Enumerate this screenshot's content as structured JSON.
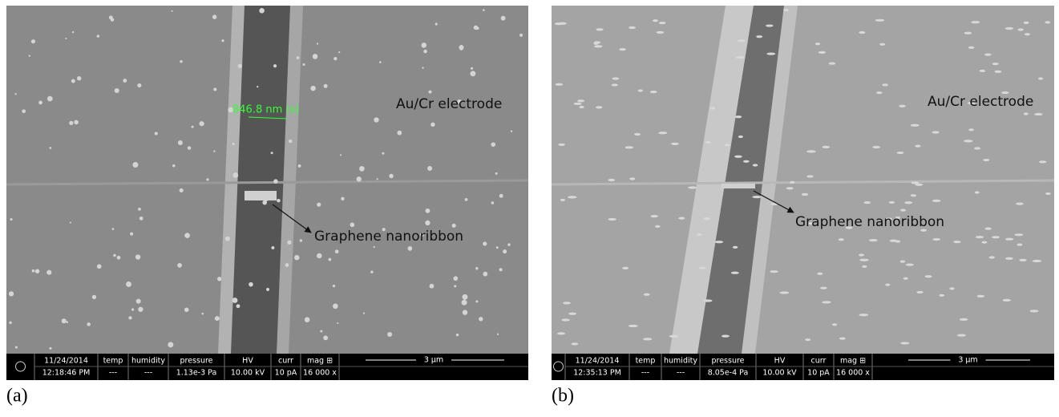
{
  "panels": [
    {
      "label": "(a)",
      "electrode": "Au/Cr electrode",
      "ribbon": "Graphene nanoribbon",
      "measurement": "846.8 nm (s)",
      "date": "11/24/2014",
      "time": "12:18:46 PM",
      "scale": "3 µm",
      "fields": [
        {
          "header": "temp",
          "value": "---"
        },
        {
          "header": "humidity",
          "value": "---"
        },
        {
          "header": "pressure",
          "value": "1.13e-3 Pa"
        },
        {
          "header": "HV",
          "value": "10.00 kV"
        },
        {
          "header": "curr",
          "value": "10 pA"
        },
        {
          "header": "mag ⊞",
          "value": "16 000 x"
        }
      ]
    },
    {
      "label": "(b)",
      "electrode": "Au/Cr electrode",
      "ribbon": "Graphene nanoribbon",
      "date": "11/24/2014",
      "time": "12:35:13 PM",
      "scale": "3 µm",
      "fields": [
        {
          "header": "temp",
          "value": "---"
        },
        {
          "header": "humidity",
          "value": "---"
        },
        {
          "header": "pressure",
          "value": "8.05e-4 Pa"
        },
        {
          "header": "HV",
          "value": "10.00 kV"
        },
        {
          "header": "curr",
          "value": "10 pA"
        },
        {
          "header": "mag ⊞",
          "value": "16 000 x"
        }
      ]
    }
  ]
}
